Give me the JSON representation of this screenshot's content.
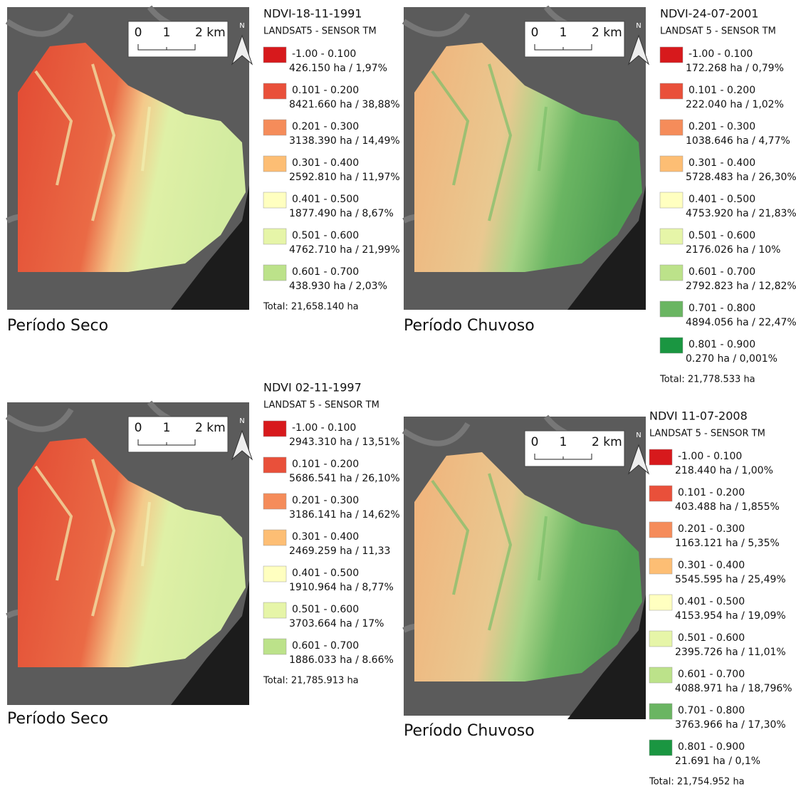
{
  "panels": [
    {
      "title": "NDVI-18-11-1991",
      "sensor": "LANDSAT5 - SENSOR TM",
      "period": "Período Seco",
      "scale": [
        "0",
        "1",
        "2 km"
      ],
      "north": "N",
      "legend": [
        {
          "range": "-1.00 - 0.100",
          "area": "426.150 ha / 1,97%",
          "color": "#d7191c"
        },
        {
          "range": "0.101 - 0.200",
          "area": "8421.660 ha / 38,88%",
          "color": "#e9503a"
        },
        {
          "range": "0.201 - 0.300",
          "area": "3138.390 ha / 14,49%",
          "color": "#f58c5a"
        },
        {
          "range": "0.301 - 0.400",
          "area": "2592.810 ha / 11,97%",
          "color": "#fdbe74"
        },
        {
          "range": "0.401 - 0.500",
          "area": "1877.490 ha / 8,67%",
          "color": "#ffffc0"
        },
        {
          "range": "0.501 - 0.600",
          "area": "4762.710 ha / 21,99%",
          "color": "#e6f5a8"
        },
        {
          "range": "0.601 - 0.700",
          "area": "438.930 ha / 2,03%",
          "color": "#bce28a"
        }
      ],
      "total": "Total: 21,658.140 ha"
    },
    {
      "title": "NDVI-24-07-2001",
      "sensor": "LANDSAT 5 - SENSOR TM",
      "period": "Período Chuvoso",
      "scale": [
        "0",
        "1",
        "2 km"
      ],
      "north": "N",
      "legend": [
        {
          "range": "-1.00 - 0.100",
          "area": "172.268 ha / 0,79%",
          "color": "#d7191c"
        },
        {
          "range": "0.101 - 0.200",
          "area": "222.040 ha / 1,02%",
          "color": "#e9503a"
        },
        {
          "range": "0.201 - 0.300",
          "area": "1038.646 ha / 4,77%",
          "color": "#f58c5a"
        },
        {
          "range": "0.301 - 0.400",
          "area": "5728.483 ha / 26,30%",
          "color": "#fdbe74"
        },
        {
          "range": "0.401 - 0.500",
          "area": "4753.920 ha / 21,83%",
          "color": "#ffffc0"
        },
        {
          "range": "0.501 - 0.600",
          "area": "2176.026 ha / 10%",
          "color": "#e6f5a8"
        },
        {
          "range": "0.601 - 0.700",
          "area": "2792.823 ha / 12,82%",
          "color": "#bce28a"
        },
        {
          "range": "0.701 - 0.800",
          "area": "4894.056 ha / 22,47%",
          "color": "#6ab562"
        },
        {
          "range": "0.801 - 0.900",
          "area": "0.270 ha / 0,001%",
          "color": "#1a9641"
        }
      ],
      "total": "Total: 21,778.533 ha"
    },
    {
      "title": "NDVI 02-11-1997",
      "sensor": "LANDSAT 5 - SENSOR TM",
      "period": "Período Seco",
      "scale": [
        "0",
        "1",
        "2 km"
      ],
      "north": "N",
      "legend": [
        {
          "range": "-1.00 - 0.100",
          "area": "2943.310 ha / 13,51%",
          "color": "#d7191c"
        },
        {
          "range": "0.101 - 0.200",
          "area": "5686.541 ha / 26,10%",
          "color": "#e9503a"
        },
        {
          "range": "0.201 - 0.300",
          "area": "3186.141 ha / 14,62%",
          "color": "#f58c5a"
        },
        {
          "range": "0.301 - 0.400",
          "area": "2469.259 ha / 11,33",
          "color": "#fdbe74"
        },
        {
          "range": "0.401 - 0.500",
          "area": "1910.964 ha / 8,77%",
          "color": "#ffffc0"
        },
        {
          "range": "0.501 - 0.600",
          "area": "3703.664 ha / 17%",
          "color": "#e6f5a8"
        },
        {
          "range": "0.601 - 0.700",
          "area": "1886.033 ha / 8.66%",
          "color": "#bce28a"
        }
      ],
      "total": "Total: 21,785.913 ha"
    },
    {
      "title": "NDVI 11-07-2008",
      "sensor": "LANDSAT 5 - SENSOR TM",
      "period": "Período Chuvoso",
      "scale": [
        "0",
        "1",
        "2 km"
      ],
      "north": "N",
      "legend": [
        {
          "range": "-1.00 - 0.100",
          "area": "218.440 ha / 1,00%",
          "color": "#d7191c"
        },
        {
          "range": "0.101 - 0.200",
          "area": "403.488 ha / 1,855%",
          "color": "#e9503a"
        },
        {
          "range": "0.201 - 0.300",
          "area": "1163.121 ha / 5,35%",
          "color": "#f58c5a"
        },
        {
          "range": "0.301 - 0.400",
          "area": "5545.595 ha / 25,49%",
          "color": "#fdbe74"
        },
        {
          "range": "0.401 - 0.500",
          "area": "4153.954 ha / 19,09%",
          "color": "#ffffc0"
        },
        {
          "range": "0.501 - 0.600",
          "area": "2395.726 ha / 11,01%",
          "color": "#e6f5a8"
        },
        {
          "range": "0.601 - 0.700",
          "area": "4088.971 ha / 18,796%",
          "color": "#bce28a"
        },
        {
          "range": "0.701 - 0.800",
          "area": "3763.966 ha / 17,30%",
          "color": "#6ab562"
        },
        {
          "range": "0.801 - 0.900",
          "area": "21.691 ha / 0,1%",
          "color": "#1a9641"
        }
      ],
      "total": "Total: 21,754.952 ha"
    }
  ]
}
